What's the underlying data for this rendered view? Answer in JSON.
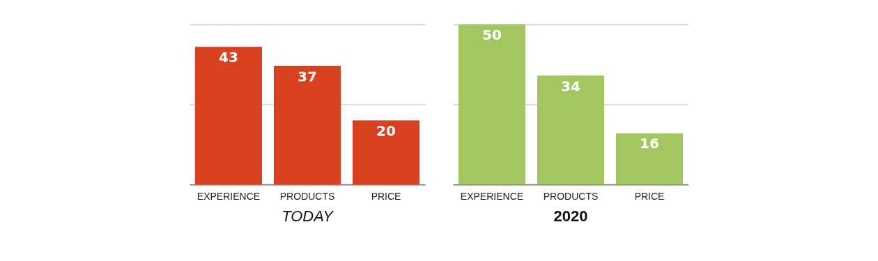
{
  "chart_data": [
    {
      "type": "bar",
      "title": "TODAY",
      "categories": [
        "EXPERIENCE",
        "PRODUCTS",
        "PRICE"
      ],
      "values": [
        43,
        37,
        20
      ],
      "color": "#d9401f",
      "ylim": [
        0,
        50
      ],
      "yticks": [
        {
          "value": 0,
          "label": null
        },
        {
          "value": 25,
          "label": null
        },
        {
          "value": 50,
          "label": null
        }
      ],
      "grid": "y",
      "tick_labels": "x",
      "data_labels": true
    },
    {
      "type": "bar",
      "title": "2020",
      "categories": [
        "EXPERIENCE",
        "PRODUCTS",
        "PRICE"
      ],
      "values": [
        50,
        34,
        16
      ],
      "color": "#a3c660",
      "ylim": [
        0,
        50
      ],
      "yticks": [
        {
          "value": 0,
          "label": null
        },
        {
          "value": 25,
          "label": null
        },
        {
          "value": 50,
          "label": null
        }
      ],
      "grid": "y",
      "tick_labels": "x",
      "data_labels": true
    }
  ]
}
